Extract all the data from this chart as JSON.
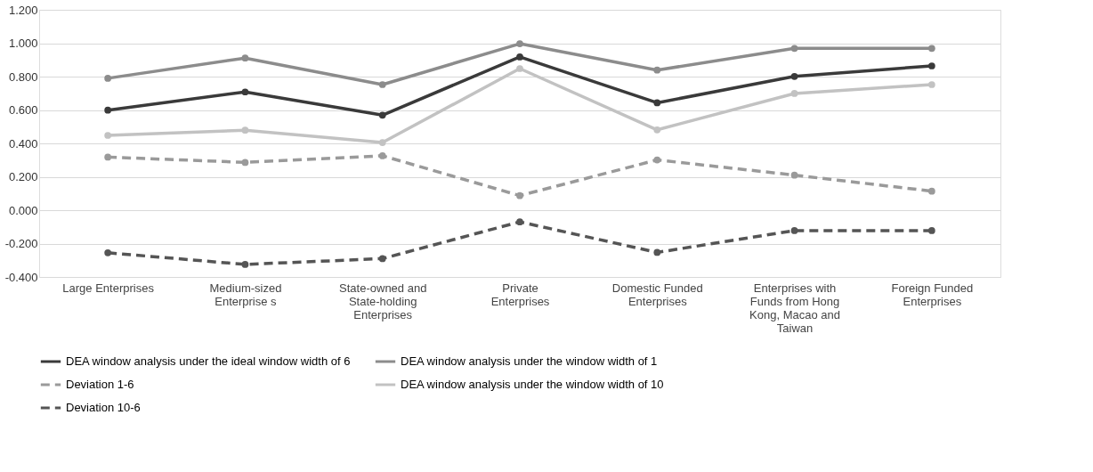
{
  "chart_data": {
    "type": "line",
    "categories": [
      "Large Enterprises",
      "Medium-sized Enterprise s",
      "State-owned and State-holding Enterprises",
      "Private Enterprises",
      "Domestic Funded Enterprises",
      "Enterprises with Funds from Hong Kong, Macao and Taiwan",
      "Foreign Funded Enterprises"
    ],
    "series": [
      {
        "name": "DEA window analysis under the ideal window width of 6",
        "color": "#3a3a3a",
        "line_style": "solid",
        "values": [
          0.599,
          0.708,
          0.569,
          0.918,
          0.643,
          0.801,
          0.864
        ]
      },
      {
        "name": "DEA window analysis  under the window width of 1",
        "color": "#8c8c8c",
        "line_style": "solid",
        "values": [
          0.79,
          0.911,
          0.752,
          0.997,
          0.839,
          0.969,
          0.969
        ]
      },
      {
        "name": "Deviation 1-6",
        "color": "#9a9a9a",
        "line_style": "dashed",
        "values": [
          0.318,
          0.286,
          0.326,
          0.087,
          0.301,
          0.21,
          0.114
        ]
      },
      {
        "name": "DEA window analysis  under the window width of 10",
        "color": "#c2c2c2",
        "line_style": "solid",
        "values": [
          0.448,
          0.479,
          0.405,
          0.848,
          0.481,
          0.699,
          0.752
        ]
      },
      {
        "name": "Deviation 10-6",
        "color": "#555555",
        "line_style": "dashed",
        "values": [
          -0.255,
          -0.325,
          -0.29,
          -0.07,
          -0.253,
          -0.122,
          -0.122
        ]
      }
    ],
    "ylim": [
      -0.4,
      1.2
    ],
    "yticks": [
      {
        "value": -0.4,
        "label": "-0.400"
      },
      {
        "value": -0.2,
        "label": "-0.200"
      },
      {
        "value": 0,
        "label": "0.000"
      },
      {
        "value": 0.2,
        "label": "0.200"
      },
      {
        "value": 0.4,
        "label": "0.400"
      },
      {
        "value": 0.6,
        "label": "0.600"
      },
      {
        "value": 0.8,
        "label": "0.800"
      },
      {
        "value": 1.0,
        "label": "1.000"
      },
      {
        "value": 1.2,
        "label": "1.200"
      }
    ],
    "grid": "y",
    "legend": "bottom",
    "marker": "circle"
  }
}
